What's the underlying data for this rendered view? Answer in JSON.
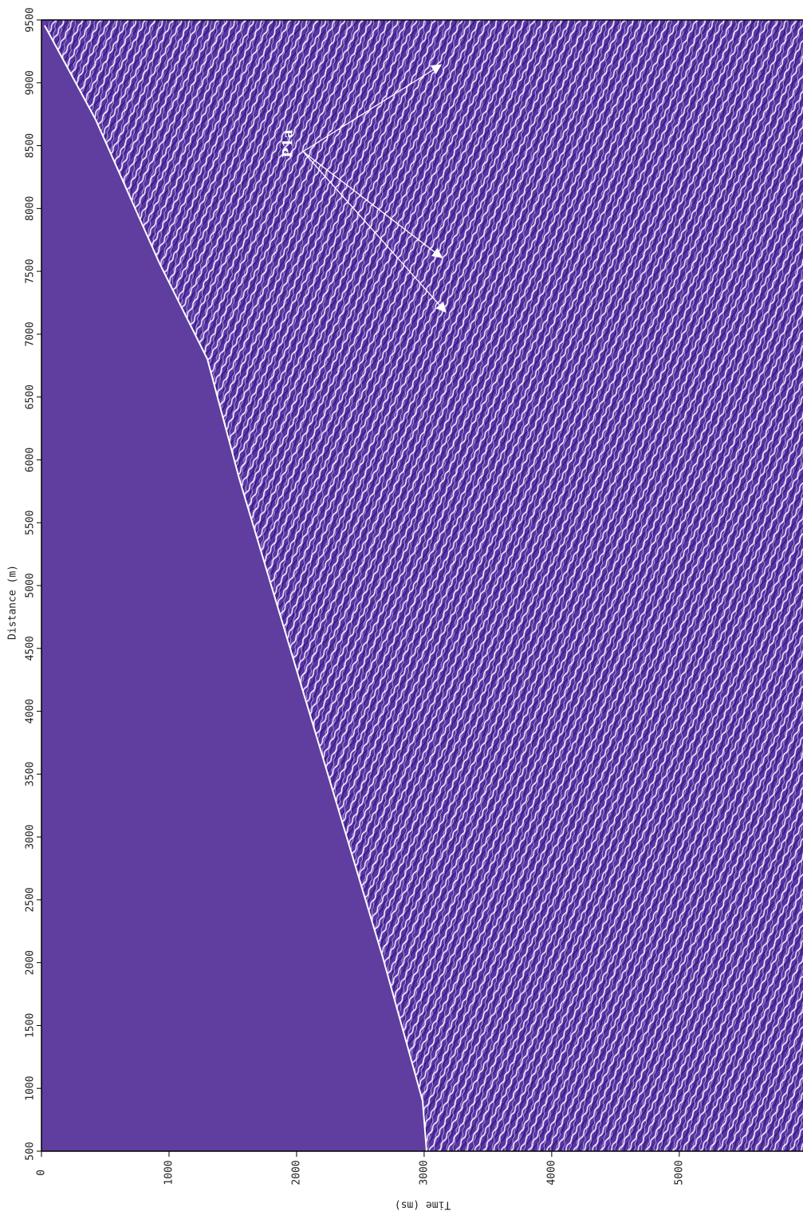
{
  "chart_data": {
    "type": "seismic",
    "xlabel": "Time (ms)",
    "ylabel": "Distance (m)",
    "xlim": [
      0,
      5970
    ],
    "xticks": [
      0,
      1000,
      2000,
      3000,
      4000,
      5000
    ],
    "ylim": [
      500,
      9500
    ],
    "yticks": [
      500,
      1000,
      1500,
      2000,
      2500,
      3000,
      3500,
      4000,
      4500,
      5000,
      5500,
      6000,
      6500,
      7000,
      7500,
      8000,
      8500,
      9000,
      9500
    ],
    "annotations": [
      "P1a"
    ]
  }
}
